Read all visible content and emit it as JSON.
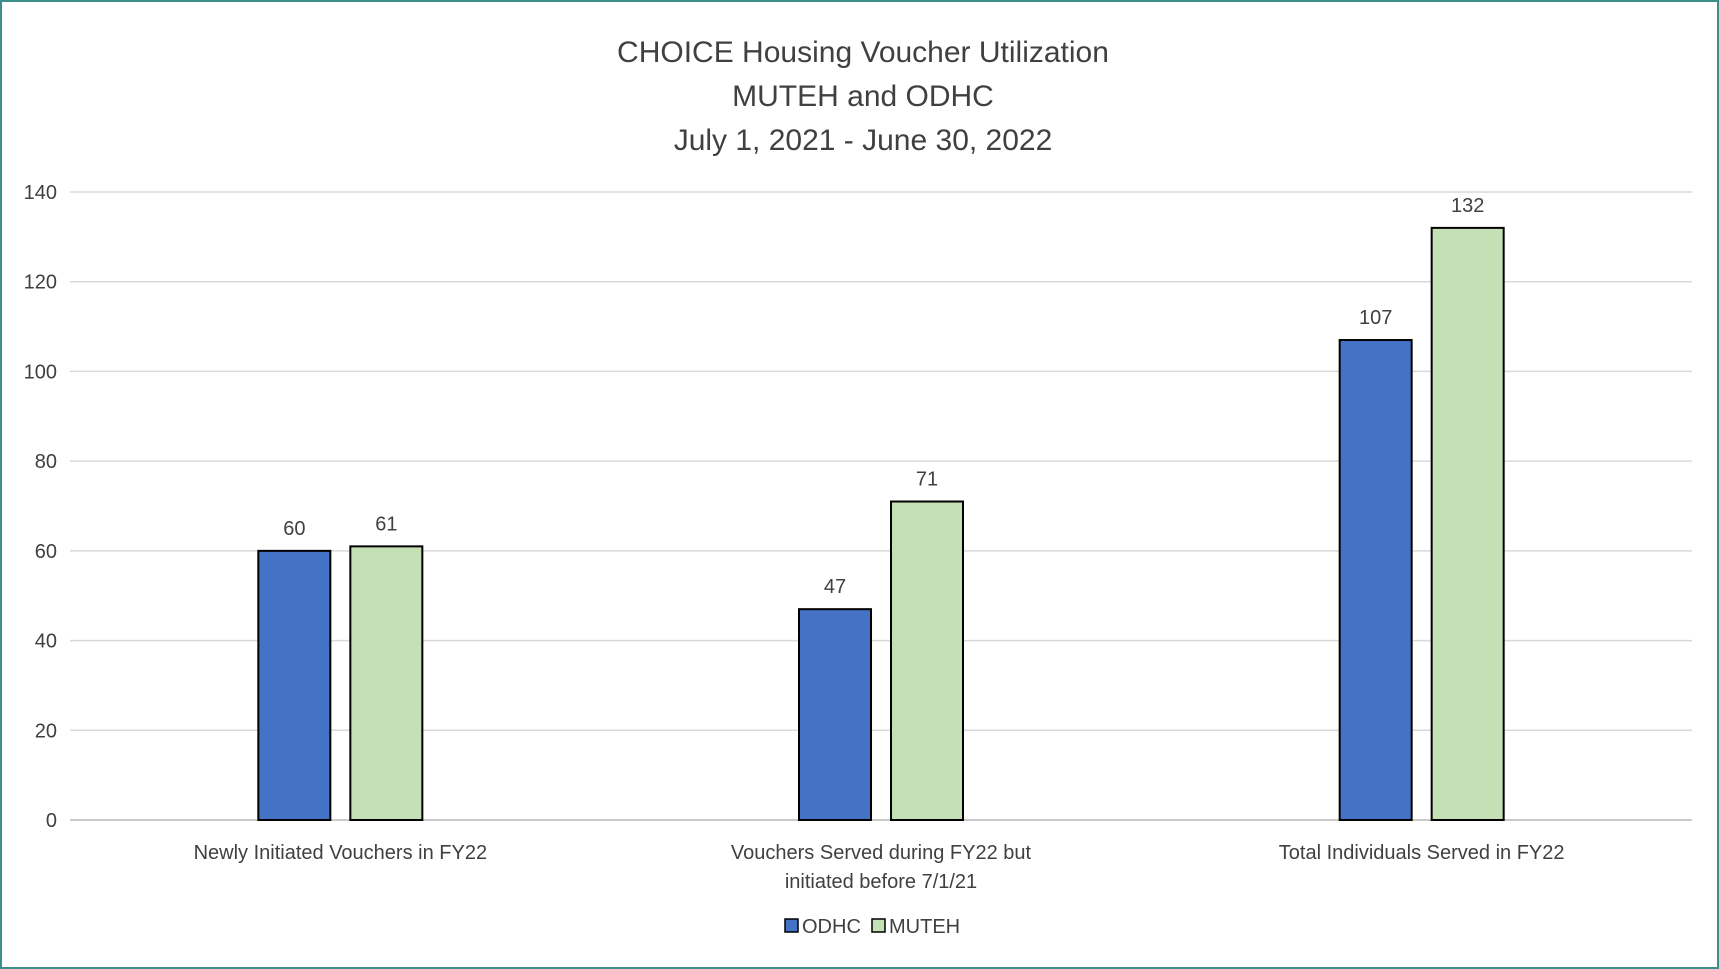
{
  "chart_data": {
    "type": "bar",
    "title": [
      "CHOICE Housing Voucher Utilization",
      "MUTEH and ODHC",
      "July 1, 2021 - June 30, 2022"
    ],
    "categories": [
      [
        "Newly Initiated Vouchers in FY22"
      ],
      [
        "Vouchers Served during FY22 but",
        "initiated before 7/1/21"
      ],
      [
        "Total Individuals Served in FY22"
      ]
    ],
    "series": [
      {
        "name": "ODHC",
        "color": "#4472c4",
        "values": [
          60,
          47,
          107
        ]
      },
      {
        "name": "MUTEH",
        "color": "#c5e0b4",
        "values": [
          61,
          71,
          132
        ]
      }
    ],
    "ylim": [
      0,
      140
    ],
    "yticks": [
      0,
      20,
      40,
      60,
      80,
      100,
      120,
      140
    ],
    "grid": true,
    "gridColor": "#d9d9d9",
    "legendPlacement": "bottom-center",
    "dataLabels": true,
    "xlabel": "",
    "ylabel": ""
  }
}
